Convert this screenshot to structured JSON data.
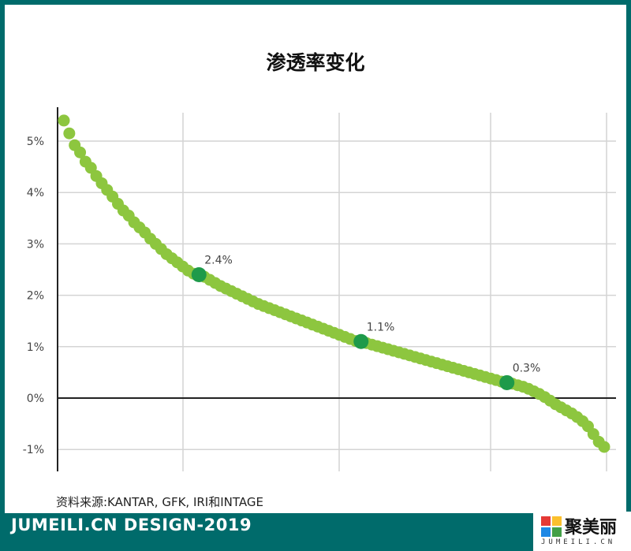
{
  "chart_data": {
    "type": "scatter",
    "title": "渗透率变化",
    "xlabel": "",
    "ylabel": "",
    "ylim": [
      -1.1,
      5.5
    ],
    "y_ticks": [
      "5%",
      "4%",
      "3%",
      "2%",
      "1%",
      "0%",
      "-1%"
    ],
    "y_tick_values": [
      5,
      4,
      3,
      2,
      1,
      0,
      -1
    ],
    "grid": true,
    "point_color": "#8dc63f",
    "highlight_color": "#1e9a4a",
    "series": [
      {
        "values": [
          5.4,
          5.15,
          4.92,
          4.78,
          4.6,
          4.48,
          4.32,
          4.18,
          4.05,
          3.92,
          3.78,
          3.65,
          3.55,
          3.42,
          3.32,
          3.22,
          3.1,
          3.0,
          2.9,
          2.8,
          2.72,
          2.64,
          2.56,
          2.48,
          2.42,
          2.4,
          2.36,
          2.3,
          2.24,
          2.18,
          2.13,
          2.08,
          2.03,
          1.98,
          1.93,
          1.88,
          1.83,
          1.79,
          1.75,
          1.71,
          1.67,
          1.63,
          1.59,
          1.55,
          1.51,
          1.47,
          1.43,
          1.39,
          1.35,
          1.31,
          1.27,
          1.23,
          1.19,
          1.15,
          1.11,
          1.1,
          1.07,
          1.04,
          1.01,
          0.98,
          0.95,
          0.92,
          0.89,
          0.86,
          0.83,
          0.8,
          0.77,
          0.74,
          0.71,
          0.68,
          0.65,
          0.62,
          0.59,
          0.56,
          0.53,
          0.5,
          0.47,
          0.44,
          0.41,
          0.38,
          0.35,
          0.32,
          0.3,
          0.28,
          0.25,
          0.22,
          0.18,
          0.13,
          0.08,
          0.02,
          -0.05,
          -0.12,
          -0.18,
          -0.24,
          -0.3,
          -0.37,
          -0.45,
          -0.55,
          -0.7,
          -0.85,
          -0.95
        ]
      }
    ],
    "annotations": [
      {
        "index": 25,
        "value": 2.4,
        "label": "2.4%"
      },
      {
        "index": 55,
        "value": 1.1,
        "label": "1.1%"
      },
      {
        "index": 82,
        "value": 0.3,
        "label": "0.3%"
      }
    ]
  },
  "source_text": "资料来源:KANTAR, GFK, IRI和INTAGE",
  "footer": {
    "left_text": "JUMEILI.CN DESIGN-2019",
    "brand_name": "聚美丽",
    "brand_sub": "JUMEILI.CN"
  },
  "colors": {
    "border": "#006b6b",
    "background": "#ffffff"
  }
}
